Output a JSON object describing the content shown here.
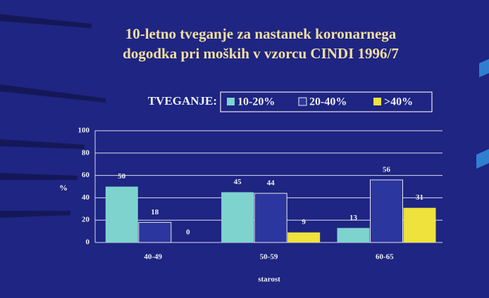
{
  "chart_data": {
    "type": "bar",
    "title": [
      "10-letno tveganje za nastanek koronarnega",
      "dogodka pri moških v vzorcu CINDI 1996/7"
    ],
    "legend_title": "TVEGANJE:",
    "legend": "top",
    "categories": [
      "40-49",
      "50-59",
      "60-65"
    ],
    "series": [
      {
        "name": "10-20%",
        "color": "#7ed3cf",
        "values": [
          50,
          45,
          13
        ]
      },
      {
        "name": "20-40%",
        "color": "#2b369e",
        "values": [
          18,
          44,
          56
        ]
      },
      {
        "name": ">40%",
        "color": "#efe23c",
        "values": [
          0,
          9,
          31
        ]
      }
    ],
    "xlabel": "starost",
    "ylabel": "%",
    "ylim": [
      0,
      100
    ],
    "yticks": [
      0,
      20,
      40,
      60,
      80,
      100
    ],
    "grid": true
  }
}
